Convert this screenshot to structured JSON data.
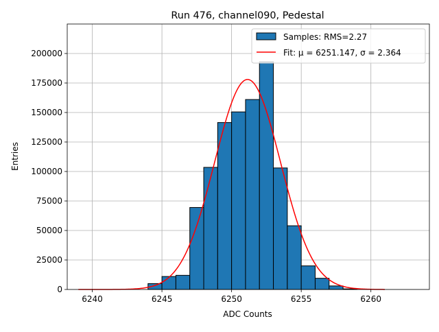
{
  "chart_data": {
    "type": "bar",
    "title": "Run 476, channel090, Pedestal",
    "xlabel": "ADC Counts",
    "ylabel": "Entries",
    "xlim": [
      6238.2,
      6264.2
    ],
    "ylim": [
      0,
      225000
    ],
    "xticks": [
      6240,
      6245,
      6250,
      6255,
      6260
    ],
    "yticks": [
      0,
      25000,
      50000,
      75000,
      100000,
      125000,
      150000,
      175000,
      200000
    ],
    "grid": true,
    "legend_position": "top-right",
    "bin_width": 1,
    "bins": [
      {
        "x": 6244,
        "value": 5000
      },
      {
        "x": 6245,
        "value": 11000
      },
      {
        "x": 6246,
        "value": 12000
      },
      {
        "x": 6247,
        "value": 69500
      },
      {
        "x": 6248,
        "value": 103500
      },
      {
        "x": 6249,
        "value": 141500
      },
      {
        "x": 6250,
        "value": 150500
      },
      {
        "x": 6251,
        "value": 161000
      },
      {
        "x": 6252,
        "value": 193000
      },
      {
        "x": 6253,
        "value": 103000
      },
      {
        "x": 6254,
        "value": 54000
      },
      {
        "x": 6255,
        "value": 20000
      },
      {
        "x": 6256,
        "value": 9500
      },
      {
        "x": 6257,
        "value": 3000
      },
      {
        "x": 6258,
        "value": 500
      }
    ],
    "fit": {
      "mu": 6251.147,
      "sigma": 2.364,
      "amplitude": 178000,
      "x_range": [
        6239,
        6261
      ]
    },
    "series": [
      {
        "name": "Samples: RMS=2.27",
        "type": "histogram",
        "color": "#1f77b4",
        "edgecolor": "#000000"
      },
      {
        "name": "Fit: μ = 6251.147, σ = 2.364",
        "type": "line",
        "color": "#ff0000"
      }
    ]
  }
}
